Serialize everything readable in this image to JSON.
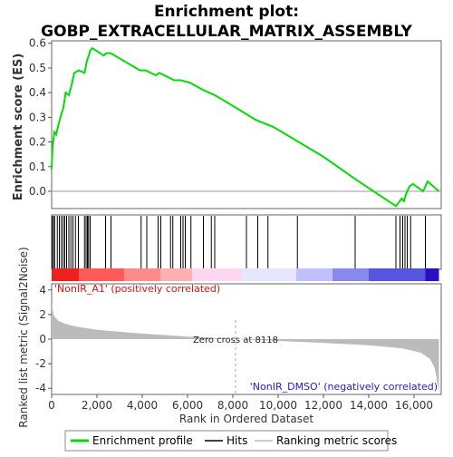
{
  "chart_data": {
    "type": "line",
    "title": "Enrichment plot:",
    "subtitle": "GOBP_EXTRACELLULAR_MATRIX_ASSEMBLY",
    "xlabel": "Rank in Ordered Dataset",
    "ylabel_top": "Enrichment score (ES)",
    "ylabel_bottom": "Ranked list metric (Signal2Noise)",
    "xlim": [
      0,
      17200
    ],
    "ylim_es": [
      -0.07,
      0.61
    ],
    "ylim_metric": [
      -4.5,
      4.5
    ],
    "x_ticks": [
      "0",
      "2,000",
      "4,000",
      "6,000",
      "8,000",
      "10,000",
      "12,000",
      "14,000",
      "16,000"
    ],
    "x_tick_values": [
      0,
      2000,
      4000,
      6000,
      8000,
      10000,
      12000,
      14000,
      16000
    ],
    "es_ticks": [
      "0.0",
      "0.1",
      "0.2",
      "0.3",
      "0.4",
      "0.5",
      "0.6"
    ],
    "es_tick_values": [
      0.0,
      0.1,
      0.2,
      0.3,
      0.4,
      0.5,
      0.6
    ],
    "metric_ticks": [
      "4",
      "2",
      "0",
      "-2",
      "-4"
    ],
    "metric_tick_values": [
      4,
      2,
      0,
      -2,
      -4
    ],
    "zero_cross_label": "Zero cross at 8118",
    "zero_cross": 8118,
    "positive_label": "'NonIR_A1' (positively correlated)",
    "negative_label": "'NonIR_DMSO' (negatively correlated)",
    "series": [
      {
        "name": "Enrichment profile",
        "color": "#00dd00",
        "x": [
          0,
          40,
          120,
          200,
          300,
          420,
          520,
          620,
          760,
          880,
          1000,
          1200,
          1450,
          1560,
          1640,
          1700,
          1800,
          2300,
          2420,
          2600,
          3900,
          4150,
          4600,
          4750,
          5200,
          5400,
          5700,
          6100,
          6700,
          7200,
          8118,
          9000,
          9800,
          10900,
          12000,
          13400,
          15200,
          15450,
          15550,
          15650,
          15800,
          15950,
          16400,
          16600,
          17100
        ],
        "y": [
          0.09,
          0.18,
          0.24,
          0.23,
          0.27,
          0.31,
          0.34,
          0.4,
          0.39,
          0.43,
          0.48,
          0.49,
          0.48,
          0.53,
          0.55,
          0.57,
          0.58,
          0.55,
          0.56,
          0.56,
          0.49,
          0.49,
          0.47,
          0.48,
          0.46,
          0.45,
          0.45,
          0.44,
          0.41,
          0.39,
          0.34,
          0.29,
          0.26,
          0.2,
          0.14,
          0.05,
          -0.06,
          -0.03,
          -0.04,
          -0.01,
          0.02,
          0.03,
          0.0,
          0.04,
          0.0
        ]
      }
    ],
    "hits": [
      20,
      80,
      130,
      250,
      340,
      430,
      510,
      580,
      660,
      760,
      850,
      940,
      1050,
      1180,
      1450,
      1520,
      1580,
      1630,
      1700,
      2380,
      2620,
      3950,
      4200,
      4700,
      4820,
      5250,
      5350,
      5700,
      5800,
      5900,
      6150,
      6700,
      7050,
      7200,
      8600,
      9100,
      9550,
      10850,
      13400,
      15200,
      15380,
      15500,
      15600,
      15700,
      15850,
      16500
    ],
    "heat_colors": [
      "#ee2020",
      "#ff5a5a",
      "#ff8a8a",
      "#ffb0b0",
      "#ffd6f0",
      "#e6e6ff",
      "#c0c0ff",
      "#8888ee",
      "#5555dd",
      "#2a10c0"
    ],
    "heat_breaks": [
      0,
      1200,
      3200,
      4800,
      6200,
      8400,
      10800,
      12400,
      14000,
      16500,
      17100
    ],
    "metric_curve": {
      "x": [
        0,
        100,
        300,
        600,
        1000,
        2000,
        4000,
        6000,
        8118,
        10000,
        12000,
        14000,
        15500,
        16300,
        16700,
        16900,
        17000,
        17100
      ],
      "y": [
        2.9,
        1.9,
        1.5,
        1.25,
        1.05,
        0.75,
        0.45,
        0.2,
        0.0,
        -0.15,
        -0.3,
        -0.5,
        -0.75,
        -1.1,
        -1.6,
        -2.3,
        -3.2,
        -4.4
      ]
    },
    "legend": [
      {
        "label": "Enrichment profile",
        "color": "#00dd00"
      },
      {
        "label": "Hits",
        "color": "#000000"
      },
      {
        "label": "Ranking metric scores",
        "color": "#bbbbbb"
      }
    ]
  }
}
